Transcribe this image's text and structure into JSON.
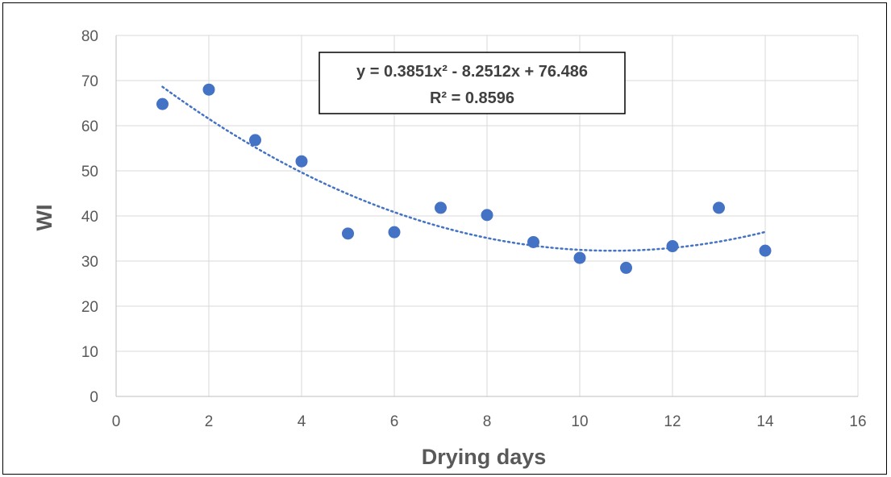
{
  "chart_data": {
    "type": "scatter",
    "title": "",
    "xlabel": "Drying days",
    "ylabel": "WI",
    "xlim": [
      0,
      16
    ],
    "ylim": [
      0,
      80
    ],
    "x_ticks": [
      0,
      2,
      4,
      6,
      8,
      10,
      12,
      14,
      16
    ],
    "y_ticks": [
      0,
      10,
      20,
      30,
      40,
      50,
      60,
      70,
      80
    ],
    "grid": true,
    "legend": "none",
    "series": [
      {
        "x": [
          1,
          2,
          3,
          4,
          5,
          6,
          7,
          8,
          9,
          10,
          11,
          12,
          13,
          14
        ],
        "y": [
          64.8,
          68.0,
          56.8,
          52.1,
          36.1,
          36.4,
          41.8,
          40.2,
          34.2,
          30.7,
          28.5,
          33.3,
          41.8,
          32.3
        ]
      }
    ],
    "trendline": {
      "type": "polynomial",
      "order": 2,
      "coefficients": [
        0.3851,
        -8.2512,
        76.486
      ],
      "x_range": [
        1,
        14
      ],
      "equation_label": "y = 0.3851x² - 8.2512x + 76.486",
      "r2_label": "R² = 0.8596"
    },
    "colors": {
      "points": "#4472c4",
      "grid": "#d9d9d9",
      "text": "#595959"
    }
  }
}
